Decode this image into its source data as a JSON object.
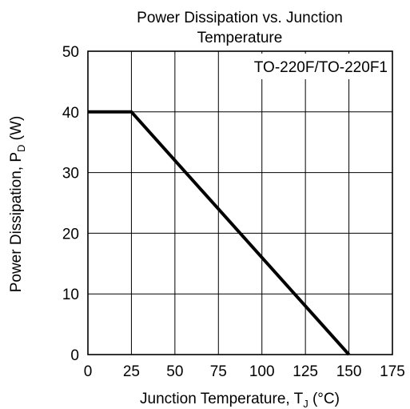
{
  "chart_data": {
    "type": "line",
    "title_line1": "Power Dissipation vs. Junction",
    "title_line2": "Temperature",
    "xlabel_main": "Junction Temperature, T",
    "xlabel_sub": "J",
    "xlabel_unit": " (°C)",
    "ylabel_main": "Power Dissipation, P",
    "ylabel_sub": "D",
    "ylabel_unit": " (W)",
    "annotation": "TO-220F/TO-220F1",
    "xlim": [
      0,
      175
    ],
    "ylim": [
      0,
      50
    ],
    "x_ticks": [
      "0",
      "25",
      "50",
      "75",
      "100",
      "125",
      "150",
      "175"
    ],
    "y_ticks": [
      "0",
      "10",
      "20",
      "30",
      "40",
      "50"
    ],
    "grid": true,
    "series": [
      {
        "x": [
          0,
          25,
          150
        ],
        "y": [
          40,
          40,
          0
        ]
      }
    ]
  }
}
